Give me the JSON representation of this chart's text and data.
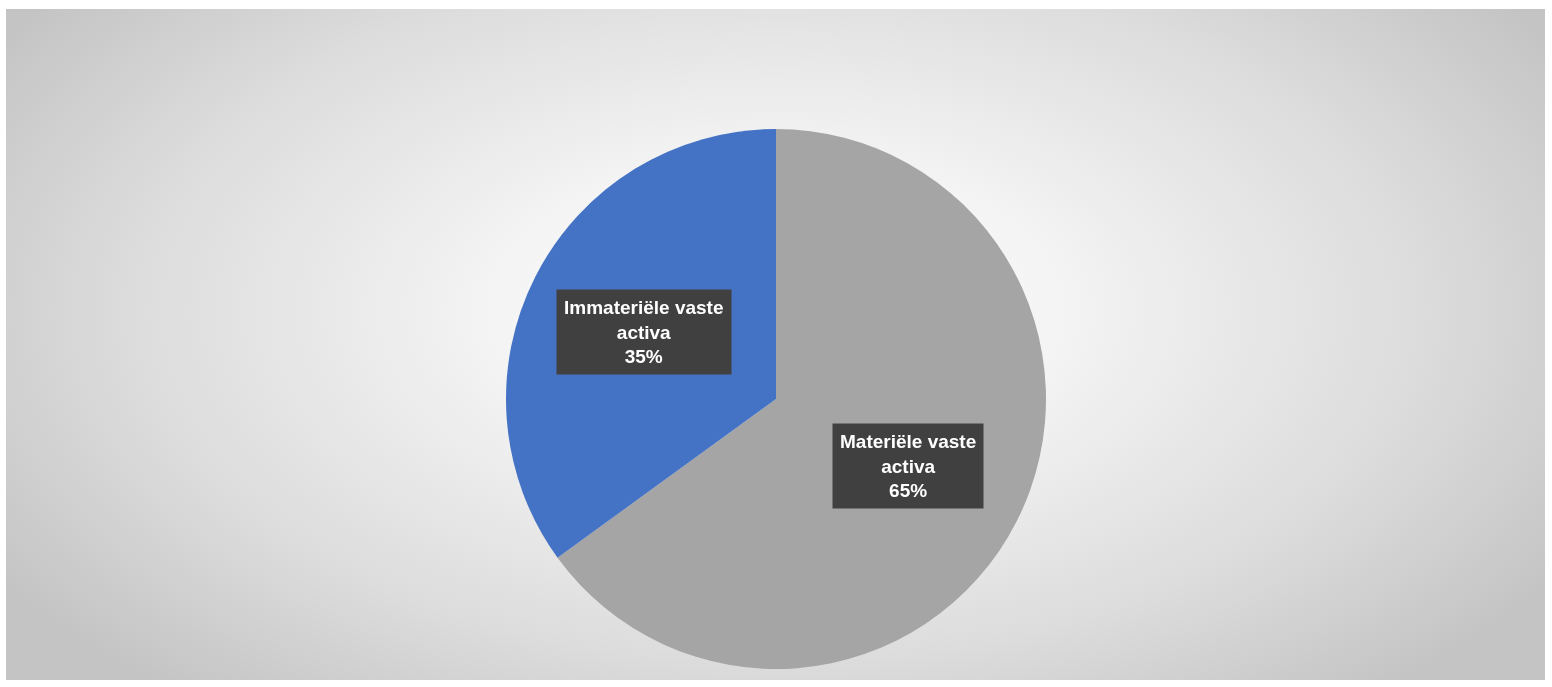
{
  "chart_data": {
    "type": "pie",
    "categories": [
      "Materiële vaste activa",
      "Immateriële vaste activa"
    ],
    "values": [
      65,
      35
    ],
    "colors": [
      "#a5a5a5",
      "#4472c4"
    ],
    "value_labels": [
      "65%",
      "35%"
    ]
  }
}
